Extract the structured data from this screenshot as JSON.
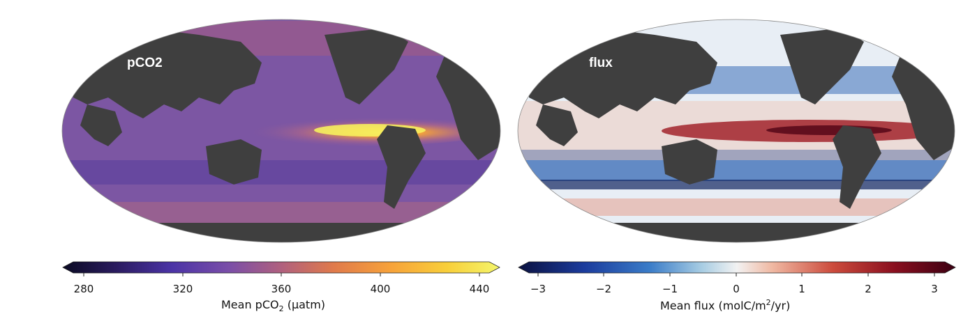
{
  "panels": [
    {
      "map_label": "pCO2",
      "colorbar": {
        "ticks": [
          "280",
          "320",
          "360",
          "400",
          "440"
        ],
        "label_main": "Mean pCO",
        "label_sub": "2",
        "label_tail": " (μatm)",
        "colors": [
          "#0a0a23",
          "#2a1b5e",
          "#4b33a6",
          "#7a4ea8",
          "#b0607e",
          "#e07a4b",
          "#f7a23a",
          "#f8cf3a",
          "#f4f56a"
        ]
      }
    },
    {
      "map_label": "flux",
      "colorbar": {
        "ticks": [
          "−3",
          "−2",
          "−1",
          "0",
          "1",
          "2",
          "3"
        ],
        "label_main": "Mean flux (molC/m",
        "label_sup": "2",
        "label_tail": "/yr)",
        "colors": [
          "#0b1140",
          "#1b3b9c",
          "#3a7cc8",
          "#a8cde3",
          "#f2f2f2",
          "#f0b9a3",
          "#cc4b3c",
          "#8a0f1f",
          "#3b0012"
        ]
      }
    }
  ],
  "colors": {
    "land": "#3f3f3f",
    "pco2_ocean": "#7c56a3",
    "flux_ocean": "#e8eef5"
  }
}
